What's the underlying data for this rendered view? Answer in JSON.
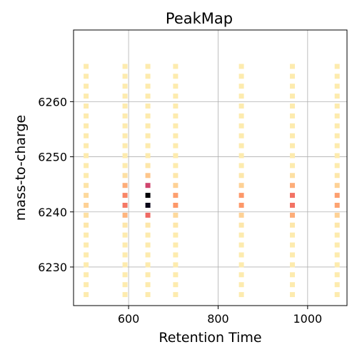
{
  "chart_data": {
    "type": "heatmap",
    "title": "PeakMap",
    "xlabel": "Retention Time",
    "ylabel": "mass-to-charge",
    "xlim": [
      477,
      1088
    ],
    "ylim": [
      6223,
      6273
    ],
    "xticks": [
      600,
      800,
      1000
    ],
    "yticks": [
      6230,
      6240,
      6250,
      6260
    ],
    "grid": true,
    "legend": "none",
    "colormap": "magma_r",
    "colormap_stops": [
      "#fcfdbf",
      "#fec98d",
      "#fd9668",
      "#e85362",
      "#b5367a",
      "#721f81",
      "#2c115f",
      "#000004"
    ],
    "mz_values": [
      6225,
      6226.8,
      6228.6,
      6230.4,
      6232.2,
      6234,
      6235.8,
      6237.6,
      6239.4,
      6241.2,
      6243,
      6244.8,
      6246.6,
      6248.4,
      6250.2,
      6252,
      6253.8,
      6255.6,
      6257.4,
      6259.2,
      6261,
      6262.8,
      6264.6,
      6266.4
    ],
    "series": [
      {
        "rt": 505,
        "intensities": [
          0.05,
          0.05,
          0.05,
          0.05,
          0.05,
          0.05,
          0.05,
          0.06,
          0.08,
          0.12,
          0.1,
          0.07,
          0.05,
          0.05,
          0.05,
          0.05,
          0.05,
          0.05,
          0.05,
          0.05,
          0.05,
          0.05,
          0.05,
          0.05
        ]
      },
      {
        "rt": 592,
        "intensities": [
          0.05,
          0.05,
          0.05,
          0.05,
          0.05,
          0.05,
          0.05,
          0.06,
          0.2,
          0.35,
          0.32,
          0.22,
          0.08,
          0.05,
          0.05,
          0.05,
          0.05,
          0.05,
          0.05,
          0.05,
          0.05,
          0.05,
          0.05,
          0.05
        ]
      },
      {
        "rt": 643,
        "intensities": [
          0.05,
          0.05,
          0.05,
          0.05,
          0.05,
          0.05,
          0.05,
          0.06,
          0.38,
          0.97,
          1.0,
          0.5,
          0.15,
          0.06,
          0.05,
          0.05,
          0.05,
          0.05,
          0.05,
          0.05,
          0.05,
          0.05,
          0.05,
          0.05
        ]
      },
      {
        "rt": 705,
        "intensities": [
          0.05,
          0.05,
          0.05,
          0.05,
          0.05,
          0.05,
          0.05,
          0.06,
          0.1,
          0.28,
          0.26,
          0.12,
          0.06,
          0.05,
          0.05,
          0.05,
          0.05,
          0.05,
          0.05,
          0.05,
          0.05,
          0.05,
          0.05,
          0.05
        ]
      },
      {
        "rt": 852,
        "intensities": [
          0.05,
          0.05,
          0.05,
          0.05,
          0.05,
          0.05,
          0.05,
          0.06,
          0.12,
          0.28,
          0.28,
          0.12,
          0.06,
          0.05,
          0.05,
          0.05,
          0.05,
          0.05,
          0.05,
          0.05,
          0.05,
          0.05,
          0.05,
          0.05
        ]
      },
      {
        "rt": 966,
        "intensities": [
          0.05,
          0.05,
          0.05,
          0.05,
          0.05,
          0.05,
          0.05,
          0.06,
          0.22,
          0.36,
          0.36,
          0.22,
          0.08,
          0.05,
          0.05,
          0.05,
          0.05,
          0.05,
          0.05,
          0.05,
          0.05,
          0.05,
          0.05,
          0.05
        ]
      },
      {
        "rt": 1066,
        "intensities": [
          0.05,
          0.05,
          0.05,
          0.05,
          0.05,
          0.05,
          0.05,
          0.06,
          0.12,
          0.25,
          0.26,
          0.12,
          0.06,
          0.05,
          0.05,
          0.05,
          0.05,
          0.05,
          0.05,
          0.05,
          0.05,
          0.05,
          0.05,
          0.05
        ]
      }
    ]
  }
}
